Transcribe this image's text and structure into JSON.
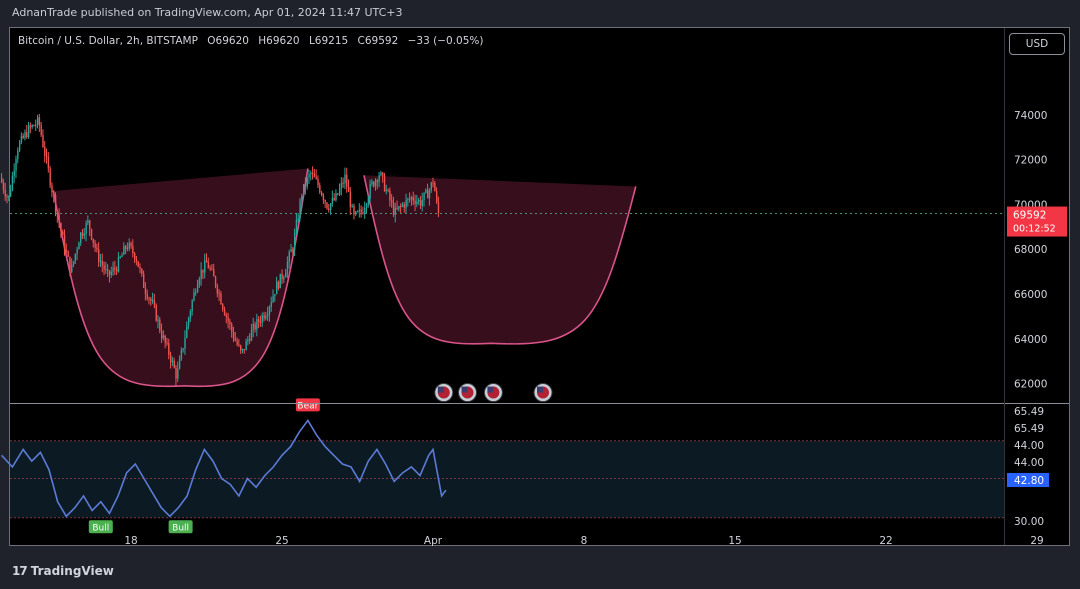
{
  "caption": "AdnanTrade published on TradingView.com, Apr 01, 2024 11:47 UTC+3",
  "header": {
    "symbol": "Bitcoin / U.S. Dollar, 2h, BITSTAMP",
    "open": "O69620",
    "high": "H69620",
    "low": "L69215",
    "close": "C69592",
    "change": "−33 (−0.05%)"
  },
  "currency_button": "USD",
  "footer_logo": "TradingView",
  "chart_data": {
    "type": "candlestick",
    "price_axis": {
      "ticks": [
        62000,
        64000,
        66000,
        68000,
        70000,
        72000,
        74000
      ],
      "labels": [
        "62000",
        "64000",
        "66000",
        "68000",
        "70000",
        "72000",
        "74000"
      ],
      "ylim": [
        61000,
        76000
      ]
    },
    "last_price": {
      "value": 69592,
      "label": "69592",
      "countdown": "00:12:52",
      "color": "#f23645"
    },
    "time_axis": {
      "labels": [
        "18",
        "25",
        "Apr",
        "8",
        "15",
        "22",
        "29"
      ],
      "positions_day": [
        18,
        25,
        32,
        39,
        46,
        53,
        60
      ]
    },
    "price_series": {
      "start_day": 12.0,
      "end_day": 32.3,
      "points": [
        [
          12.0,
          71200
        ],
        [
          12.4,
          70200
        ],
        [
          12.8,
          72500
        ],
        [
          13.3,
          73300
        ],
        [
          13.8,
          73700
        ],
        [
          14.1,
          72200
        ],
        [
          14.5,
          70300
        ],
        [
          14.9,
          68500
        ],
        [
          15.3,
          67000
        ],
        [
          15.7,
          68600
        ],
        [
          16.1,
          69200
        ],
        [
          16.5,
          67800
        ],
        [
          17.0,
          66800
        ],
        [
          17.4,
          67200
        ],
        [
          17.9,
          68200
        ],
        [
          18.3,
          67700
        ],
        [
          18.7,
          66300
        ],
        [
          19.1,
          65500
        ],
        [
          19.5,
          64200
        ],
        [
          19.9,
          63200
        ],
        [
          20.2,
          62300
        ],
        [
          20.5,
          63700
        ],
        [
          20.8,
          65200
        ],
        [
          21.2,
          66800
        ],
        [
          21.6,
          67400
        ],
        [
          22.0,
          66500
        ],
        [
          22.4,
          65300
        ],
        [
          22.8,
          64200
        ],
        [
          23.2,
          63300
        ],
        [
          23.6,
          64200
        ],
        [
          24.0,
          64800
        ],
        [
          24.4,
          65300
        ],
        [
          24.8,
          66300
        ],
        [
          25.2,
          67000
        ],
        [
          25.6,
          68200
        ],
        [
          26.0,
          70500
        ],
        [
          26.4,
          71400
        ],
        [
          26.8,
          70800
        ],
        [
          27.2,
          69900
        ],
        [
          27.6,
          70300
        ],
        [
          28.0,
          71200
        ],
        [
          28.4,
          69400
        ],
        [
          28.8,
          69700
        ],
        [
          29.2,
          70800
        ],
        [
          29.6,
          71400
        ],
        [
          30.0,
          70400
        ],
        [
          30.3,
          69600
        ],
        [
          30.7,
          70000
        ],
        [
          31.1,
          70300
        ],
        [
          31.5,
          70100
        ],
        [
          31.9,
          70600
        ],
        [
          32.1,
          71100
        ],
        [
          32.3,
          69600
        ]
      ]
    },
    "cup_pattern": {
      "rim_left": [
        14.4,
        70600
      ],
      "bottom": [
        20.5,
        61900
      ],
      "rim_right": [
        26.2,
        71600
      ],
      "fill": "#3a0f1e",
      "stroke": "#d9548a"
    },
    "handle_pattern": {
      "rim_left": [
        28.8,
        71300
      ],
      "bottom": [
        34.7,
        63800
      ],
      "rim_right": [
        41.4,
        70800
      ],
      "fill": "#3a0f1e",
      "stroke": "#d9548a"
    },
    "events": {
      "count": 4,
      "days": [
        32.5,
        33.6,
        34.8,
        37.1
      ],
      "price": 61600
    },
    "oscillator": {
      "labels": [
        "65.49",
        "65.49",
        "44.00",
        "44.00",
        "42.80",
        "30.00"
      ],
      "ylim": [
        28,
        70
      ],
      "bands": [
        57,
        44,
        30.5
      ],
      "current": {
        "value": 42.8,
        "label": "42.80",
        "color": "#2962ff"
      },
      "line_color": "#5b7bd6",
      "points": [
        [
          12.0,
          52
        ],
        [
          12.5,
          48
        ],
        [
          13.0,
          54
        ],
        [
          13.4,
          50
        ],
        [
          13.8,
          53
        ],
        [
          14.2,
          47
        ],
        [
          14.6,
          36
        ],
        [
          15.0,
          31
        ],
        [
          15.4,
          34
        ],
        [
          15.8,
          38
        ],
        [
          16.2,
          33
        ],
        [
          16.6,
          36
        ],
        [
          17.0,
          32
        ],
        [
          17.4,
          38
        ],
        [
          17.8,
          46
        ],
        [
          18.2,
          49
        ],
        [
          18.6,
          44
        ],
        [
          19.0,
          39
        ],
        [
          19.4,
          34
        ],
        [
          19.8,
          31
        ],
        [
          20.2,
          34
        ],
        [
          20.6,
          38
        ],
        [
          21.0,
          47
        ],
        [
          21.4,
          54
        ],
        [
          21.8,
          50
        ],
        [
          22.2,
          44
        ],
        [
          22.6,
          42
        ],
        [
          23.0,
          38
        ],
        [
          23.4,
          44
        ],
        [
          23.8,
          41
        ],
        [
          24.2,
          45
        ],
        [
          24.6,
          48
        ],
        [
          25.0,
          52
        ],
        [
          25.4,
          55
        ],
        [
          25.8,
          60
        ],
        [
          26.2,
          64
        ],
        [
          26.6,
          59
        ],
        [
          27.0,
          55
        ],
        [
          27.4,
          52
        ],
        [
          27.8,
          49
        ],
        [
          28.2,
          48
        ],
        [
          28.6,
          43
        ],
        [
          29.0,
          50
        ],
        [
          29.4,
          54
        ],
        [
          29.8,
          49
        ],
        [
          30.2,
          43
        ],
        [
          30.6,
          46
        ],
        [
          31.0,
          48
        ],
        [
          31.4,
          45
        ],
        [
          31.8,
          52
        ],
        [
          32.0,
          54
        ],
        [
          32.2,
          46
        ],
        [
          32.4,
          38
        ],
        [
          32.6,
          40
        ]
      ],
      "signals": [
        {
          "type": "bull",
          "label": "Bull",
          "day": 16.6,
          "value": 31,
          "color": "#4caf50"
        },
        {
          "type": "bull",
          "label": "Bull",
          "day": 20.3,
          "value": 31,
          "color": "#4caf50"
        },
        {
          "type": "bear",
          "label": "Bear",
          "day": 26.2,
          "value": 64,
          "color": "#f23645"
        }
      ]
    }
  }
}
